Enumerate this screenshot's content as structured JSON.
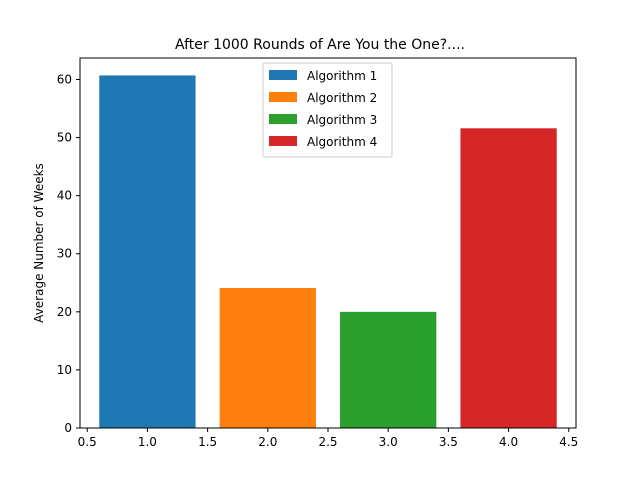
{
  "chart_data": {
    "type": "bar",
    "title": "After 1000 Rounds of Are You the One?....",
    "xlabel": "",
    "ylabel": "Average Number of Weeks",
    "x": [
      1.0,
      2.0,
      3.0,
      4.0
    ],
    "values": [
      60.7,
      24.1,
      20.0,
      51.6
    ],
    "bar_width": 0.8,
    "series": [
      {
        "name": "Algorithm 1",
        "x": 1.0,
        "value": 60.7,
        "color": "#1f77b4"
      },
      {
        "name": "Algorithm 2",
        "x": 2.0,
        "value": 24.1,
        "color": "#ff7f0e"
      },
      {
        "name": "Algorithm 3",
        "x": 3.0,
        "value": 20.0,
        "color": "#2ca02c"
      },
      {
        "name": "Algorithm 4",
        "x": 4.0,
        "value": 51.6,
        "color": "#d62728"
      }
    ],
    "xlim": [
      0.44,
      4.56
    ],
    "ylim": [
      0,
      63.7
    ],
    "xticks": [
      "0.5",
      "1.0",
      "1.5",
      "2.0",
      "2.5",
      "3.0",
      "3.5",
      "4.0",
      "4.5"
    ],
    "yticks": [
      "0",
      "10",
      "20",
      "30",
      "40",
      "50",
      "60"
    ],
    "grid": false,
    "legend_position": "upper center"
  }
}
